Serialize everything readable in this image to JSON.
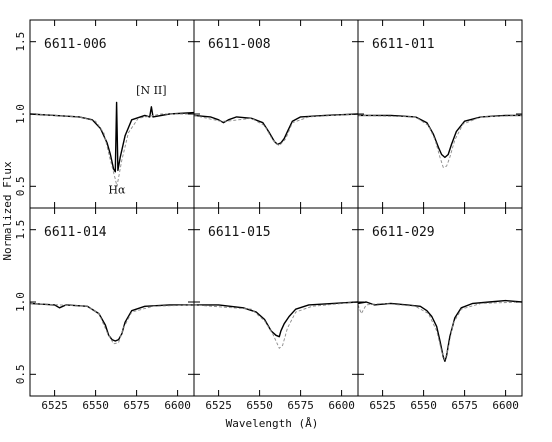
{
  "figure": {
    "xlabel": "Wavelength (Å)",
    "ylabel": "Normalized Flux"
  },
  "chart_data": {
    "type": "line",
    "rows": 2,
    "cols": 3,
    "xlim": [
      6510,
      6610
    ],
    "ylim": [
      0.35,
      1.65
    ],
    "xticks": [
      6525,
      6550,
      6575,
      6600
    ],
    "yticks": [
      0.5,
      1.0,
      1.5
    ],
    "xlabel": "Wavelength (Å)",
    "ylabel": "Normalized Flux",
    "panels": [
      {
        "label": "6611-006",
        "annotations": [
          {
            "text": "[N II]",
            "x": 6584,
            "y": 1.14
          },
          {
            "text": "Hα",
            "x": 6563,
            "y": 0.45
          }
        ],
        "series": [
          {
            "style": "solid",
            "points": [
              [
                6510,
                1.0
              ],
              [
                6525,
                0.99
              ],
              [
                6540,
                0.98
              ],
              [
                6548,
                0.96
              ],
              [
                6553,
                0.9
              ],
              [
                6557,
                0.8
              ],
              [
                6559,
                0.72
              ],
              [
                6561,
                0.62
              ],
              [
                6562,
                0.6
              ],
              [
                6562.8,
                1.08
              ],
              [
                6563.6,
                0.61
              ],
              [
                6565,
                0.7
              ],
              [
                6568,
                0.85
              ],
              [
                6572,
                0.96
              ],
              [
                6580,
                0.99
              ],
              [
                6583,
                0.98
              ],
              [
                6584,
                1.05
              ],
              [
                6585,
                0.98
              ],
              [
                6595,
                1.0
              ],
              [
                6610,
                1.01
              ]
            ]
          },
          {
            "style": "dashed",
            "points": [
              [
                6510,
                1.0
              ],
              [
                6540,
                0.98
              ],
              [
                6550,
                0.95
              ],
              [
                6555,
                0.87
              ],
              [
                6559,
                0.68
              ],
              [
                6562,
                0.55
              ],
              [
                6563,
                0.5
              ],
              [
                6564,
                0.56
              ],
              [
                6566,
                0.68
              ],
              [
                6570,
                0.87
              ],
              [
                6576,
                0.97
              ],
              [
                6590,
                1.0
              ],
              [
                6610,
                1.0
              ]
            ]
          }
        ]
      },
      {
        "label": "6611-008",
        "annotations": [],
        "series": [
          {
            "style": "solid",
            "points": [
              [
                6510,
                0.99
              ],
              [
                6520,
                0.98
              ],
              [
                6525,
                0.96
              ],
              [
                6528,
                0.94
              ],
              [
                6531,
                0.96
              ],
              [
                6536,
                0.98
              ],
              [
                6545,
                0.97
              ],
              [
                6552,
                0.94
              ],
              [
                6556,
                0.87
              ],
              [
                6559,
                0.81
              ],
              [
                6561,
                0.79
              ],
              [
                6563,
                0.8
              ],
              [
                6565,
                0.83
              ],
              [
                6567,
                0.88
              ],
              [
                6570,
                0.95
              ],
              [
                6575,
                0.98
              ],
              [
                6590,
                0.99
              ],
              [
                6610,
                1.0
              ]
            ]
          },
          {
            "style": "dashed",
            "points": [
              [
                6510,
                0.99
              ],
              [
                6526,
                0.95
              ],
              [
                6530,
                0.95
              ],
              [
                6545,
                0.97
              ],
              [
                6553,
                0.92
              ],
              [
                6558,
                0.82
              ],
              [
                6562,
                0.78
              ],
              [
                6566,
                0.83
              ],
              [
                6570,
                0.94
              ],
              [
                6580,
                0.98
              ],
              [
                6610,
                1.0
              ]
            ]
          }
        ]
      },
      {
        "label": "6611-011",
        "annotations": [],
        "series": [
          {
            "style": "solid",
            "points": [
              [
                6510,
                0.99
              ],
              [
                6530,
                0.99
              ],
              [
                6545,
                0.98
              ],
              [
                6552,
                0.94
              ],
              [
                6556,
                0.86
              ],
              [
                6559,
                0.77
              ],
              [
                6561,
                0.72
              ],
              [
                6563,
                0.7
              ],
              [
                6565,
                0.72
              ],
              [
                6567,
                0.79
              ],
              [
                6570,
                0.88
              ],
              [
                6575,
                0.95
              ],
              [
                6585,
                0.98
              ],
              [
                6600,
                0.99
              ],
              [
                6610,
                0.99
              ]
            ]
          },
          {
            "style": "dashed",
            "points": [
              [
                6510,
                0.99
              ],
              [
                6545,
                0.98
              ],
              [
                6553,
                0.92
              ],
              [
                6557,
                0.82
              ],
              [
                6560,
                0.7
              ],
              [
                6562,
                0.63
              ],
              [
                6564,
                0.64
              ],
              [
                6566,
                0.7
              ],
              [
                6569,
                0.82
              ],
              [
                6574,
                0.93
              ],
              [
                6585,
                0.98
              ],
              [
                6610,
                0.99
              ]
            ]
          }
        ]
      },
      {
        "label": "6611-014",
        "annotations": [],
        "series": [
          {
            "style": "solid",
            "points": [
              [
                6510,
                0.99
              ],
              [
                6525,
                0.98
              ],
              [
                6528,
                0.96
              ],
              [
                6532,
                0.98
              ],
              [
                6545,
                0.97
              ],
              [
                6552,
                0.92
              ],
              [
                6556,
                0.84
              ],
              [
                6558,
                0.77
              ],
              [
                6560,
                0.74
              ],
              [
                6562,
                0.73
              ],
              [
                6564,
                0.74
              ],
              [
                6566,
                0.78
              ],
              [
                6568,
                0.86
              ],
              [
                6572,
                0.94
              ],
              [
                6580,
                0.97
              ],
              [
                6595,
                0.98
              ],
              [
                6610,
                0.98
              ]
            ]
          },
          {
            "style": "dashed",
            "points": [
              [
                6510,
                0.99
              ],
              [
                6545,
                0.97
              ],
              [
                6552,
                0.92
              ],
              [
                6557,
                0.79
              ],
              [
                6561,
                0.71
              ],
              [
                6564,
                0.72
              ],
              [
                6567,
                0.82
              ],
              [
                6572,
                0.93
              ],
              [
                6585,
                0.97
              ],
              [
                6610,
                0.98
              ]
            ]
          }
        ]
      },
      {
        "label": "6611-015",
        "annotations": [],
        "series": [
          {
            "style": "solid",
            "points": [
              [
                6510,
                0.98
              ],
              [
                6525,
                0.98
              ],
              [
                6540,
                0.96
              ],
              [
                6548,
                0.93
              ],
              [
                6553,
                0.88
              ],
              [
                6557,
                0.8
              ],
              [
                6560,
                0.77
              ],
              [
                6562,
                0.76
              ],
              [
                6563,
                0.8
              ],
              [
                6565,
                0.85
              ],
              [
                6568,
                0.9
              ],
              [
                6572,
                0.95
              ],
              [
                6580,
                0.98
              ],
              [
                6595,
                0.99
              ],
              [
                6610,
                1.0
              ]
            ]
          },
          {
            "style": "dashed",
            "points": [
              [
                6510,
                0.98
              ],
              [
                6545,
                0.95
              ],
              [
                6553,
                0.87
              ],
              [
                6558,
                0.78
              ],
              [
                6562,
                0.68
              ],
              [
                6564,
                0.7
              ],
              [
                6567,
                0.82
              ],
              [
                6572,
                0.93
              ],
              [
                6582,
                0.97
              ],
              [
                6610,
                1.0
              ]
            ]
          }
        ]
      },
      {
        "label": "6611-029",
        "annotations": [],
        "series": [
          {
            "style": "solid",
            "points": [
              [
                6510,
                0.99
              ],
              [
                6515,
                1.0
              ],
              [
                6520,
                0.98
              ],
              [
                6530,
                0.99
              ],
              [
                6540,
                0.98
              ],
              [
                6548,
                0.97
              ],
              [
                6552,
                0.94
              ],
              [
                6555,
                0.9
              ],
              [
                6558,
                0.83
              ],
              [
                6560,
                0.73
              ],
              [
                6562,
                0.62
              ],
              [
                6563,
                0.59
              ],
              [
                6564,
                0.63
              ],
              [
                6566,
                0.76
              ],
              [
                6569,
                0.89
              ],
              [
                6573,
                0.96
              ],
              [
                6580,
                0.99
              ],
              [
                6590,
                1.0
              ],
              [
                6600,
                1.01
              ],
              [
                6610,
                1.0
              ]
            ]
          },
          {
            "style": "dashed",
            "points": [
              [
                6510,
                0.98
              ],
              [
                6512,
                0.92
              ],
              [
                6515,
                0.98
              ],
              [
                6525,
                0.99
              ],
              [
                6545,
                0.97
              ],
              [
                6553,
                0.92
              ],
              [
                6558,
                0.8
              ],
              [
                6561,
                0.66
              ],
              [
                6563,
                0.6
              ],
              [
                6565,
                0.68
              ],
              [
                6568,
                0.85
              ],
              [
                6573,
                0.95
              ],
              [
                6585,
                0.99
              ],
              [
                6610,
                1.0
              ]
            ]
          }
        ]
      }
    ]
  }
}
